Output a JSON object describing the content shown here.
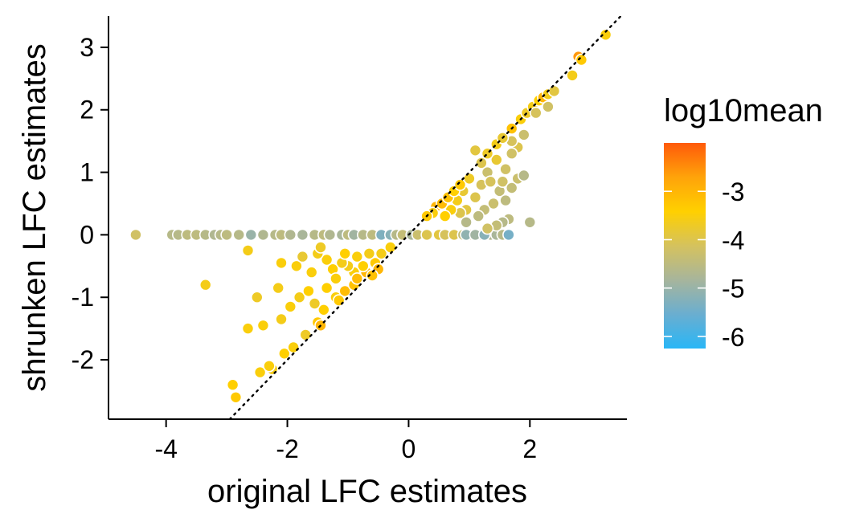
{
  "chart_data": {
    "type": "scatter",
    "title": "",
    "xlabel": "original LFC estimates",
    "ylabel": "shrunken LFC estimates",
    "xlim": [
      -4.95,
      3.6
    ],
    "ylim": [
      -2.95,
      3.5
    ],
    "xticks": [
      -4,
      -2,
      0,
      2
    ],
    "yticks": [
      -2,
      -1,
      0,
      1,
      2,
      3
    ],
    "reference_line": {
      "style": "dotted",
      "slope": 1,
      "intercept": 0
    },
    "grid": false,
    "legend": {
      "title": "log10mean",
      "placement": "right",
      "ticks": [
        -3,
        -4,
        -5,
        -6
      ],
      "range": [
        -6.25,
        -2.0
      ],
      "colors": [
        "#29b6f6",
        "#6aaed0",
        "#a7b59c",
        "#d5c25e",
        "#ffd000",
        "#ffa30a",
        "#ff5a0a"
      ]
    },
    "points": [
      {
        "x": -4.5,
        "y": 0.0,
        "c": -4.2
      },
      {
        "x": -3.9,
        "y": 0.0,
        "c": -4.6
      },
      {
        "x": -3.8,
        "y": 0.0,
        "c": -4.6
      },
      {
        "x": -3.65,
        "y": 0.0,
        "c": -4.5
      },
      {
        "x": -3.5,
        "y": 0.0,
        "c": -4.5
      },
      {
        "x": -3.35,
        "y": 0.0,
        "c": -4.6
      },
      {
        "x": -3.2,
        "y": 0.0,
        "c": -4.7
      },
      {
        "x": -3.1,
        "y": 0.0,
        "c": -4.6
      },
      {
        "x": -3.0,
        "y": 0.0,
        "c": -4.5
      },
      {
        "x": -2.8,
        "y": 0.0,
        "c": -4.6
      },
      {
        "x": -2.6,
        "y": 0.0,
        "c": -5.0
      },
      {
        "x": -2.4,
        "y": 0.0,
        "c": -4.7
      },
      {
        "x": -2.2,
        "y": 0.0,
        "c": -4.6
      },
      {
        "x": -2.1,
        "y": 0.0,
        "c": -4.5
      },
      {
        "x": -1.95,
        "y": 0.0,
        "c": -4.7
      },
      {
        "x": -1.75,
        "y": 0.0,
        "c": -4.8
      },
      {
        "x": -1.55,
        "y": 0.0,
        "c": -4.6
      },
      {
        "x": -1.4,
        "y": 0.0,
        "c": -4.5
      },
      {
        "x": -1.3,
        "y": 0.0,
        "c": -4.7
      },
      {
        "x": -1.1,
        "y": 0.0,
        "c": -4.8
      },
      {
        "x": -1.0,
        "y": 0.0,
        "c": -4.5
      },
      {
        "x": -0.9,
        "y": 0.0,
        "c": -4.9
      },
      {
        "x": -0.75,
        "y": 0.0,
        "c": -4.6
      },
      {
        "x": -0.6,
        "y": 0.0,
        "c": -4.5
      },
      {
        "x": -0.45,
        "y": 0.0,
        "c": -5.3
      },
      {
        "x": -0.3,
        "y": 0.0,
        "c": -5.2
      },
      {
        "x": -0.2,
        "y": 0.0,
        "c": -4.6
      },
      {
        "x": -0.1,
        "y": 0.0,
        "c": -4.4
      },
      {
        "x": 0.05,
        "y": 0.0,
        "c": -4.8
      },
      {
        "x": 0.15,
        "y": 0.0,
        "c": -4.3
      },
      {
        "x": 0.3,
        "y": 0.0,
        "c": -4.0
      },
      {
        "x": 0.5,
        "y": 0.0,
        "c": -3.9
      },
      {
        "x": 0.6,
        "y": 0.0,
        "c": -4.1
      },
      {
        "x": 0.75,
        "y": 0.0,
        "c": -4.0
      },
      {
        "x": 0.9,
        "y": 0.0,
        "c": -4.4
      },
      {
        "x": 1.0,
        "y": 0.0,
        "c": -4.2
      },
      {
        "x": 1.2,
        "y": 0.0,
        "c": -4.5
      },
      {
        "x": 1.35,
        "y": 0.0,
        "c": -4.7
      },
      {
        "x": 1.45,
        "y": 0.0,
        "c": -4.8
      },
      {
        "x": 1.55,
        "y": 0.0,
        "c": -4.6
      },
      {
        "x": 0.95,
        "y": 0.0,
        "c": -5.1
      },
      {
        "x": 1.1,
        "y": 0.0,
        "c": -4.9
      },
      {
        "x": 1.25,
        "y": 0.0,
        "c": -5.2
      },
      {
        "x": 1.65,
        "y": 0.0,
        "c": -5.4
      },
      {
        "x": 1.65,
        "y": 0.25,
        "c": -4.5
      },
      {
        "x": 1.55,
        "y": 0.2,
        "c": -4.6
      },
      {
        "x": 1.45,
        "y": 0.15,
        "c": -4.4
      },
      {
        "x": 1.3,
        "y": 0.1,
        "c": -4.2
      },
      {
        "x": 2.0,
        "y": 0.2,
        "c": -4.6
      },
      {
        "x": 1.6,
        "y": 1.05,
        "c": -4.2
      },
      {
        "x": 1.8,
        "y": 1.4,
        "c": -4.0
      },
      {
        "x": 1.9,
        "y": 1.6,
        "c": -4.3
      },
      {
        "x": 1.7,
        "y": 1.5,
        "c": -4.1
      },
      {
        "x": 1.45,
        "y": 1.2,
        "c": -3.8
      },
      {
        "x": 1.3,
        "y": 1.0,
        "c": -4.3
      },
      {
        "x": 1.2,
        "y": 0.8,
        "c": -4.1
      },
      {
        "x": 1.1,
        "y": 0.6,
        "c": -4.0
      },
      {
        "x": 0.95,
        "y": 0.4,
        "c": -3.9
      },
      {
        "x": 0.85,
        "y": 0.35,
        "c": -4.0
      },
      {
        "x": 1.5,
        "y": 0.7,
        "c": -4.4
      },
      {
        "x": 1.4,
        "y": 0.5,
        "c": -4.3
      },
      {
        "x": 1.6,
        "y": 0.55,
        "c": -4.5
      },
      {
        "x": 1.55,
        "y": 0.85,
        "c": -4.2
      },
      {
        "x": 1.35,
        "y": 0.85,
        "c": -4.1
      },
      {
        "x": 1.2,
        "y": 1.15,
        "c": -4.0
      },
      {
        "x": 1.0,
        "y": 0.9,
        "c": -3.7
      },
      {
        "x": 0.9,
        "y": 0.7,
        "c": -3.8
      },
      {
        "x": 0.8,
        "y": 0.55,
        "c": -3.6
      },
      {
        "x": 0.7,
        "y": 0.4,
        "c": -3.5
      },
      {
        "x": 0.6,
        "y": 0.3,
        "c": -3.4
      },
      {
        "x": 0.45,
        "y": 0.45,
        "c": -3.0
      },
      {
        "x": 0.55,
        "y": 0.5,
        "c": -3.1
      },
      {
        "x": 0.65,
        "y": 0.6,
        "c": -3.2
      },
      {
        "x": 0.75,
        "y": 0.7,
        "c": -3.4
      },
      {
        "x": 0.85,
        "y": 0.8,
        "c": -3.3
      },
      {
        "x": 0.4,
        "y": 0.35,
        "c": -3.5
      },
      {
        "x": 0.3,
        "y": 0.3,
        "c": -3.3
      },
      {
        "x": 1.1,
        "y": 1.35,
        "c": -3.9
      },
      {
        "x": 1.3,
        "y": 1.3,
        "c": -3.7
      },
      {
        "x": 1.45,
        "y": 1.45,
        "c": -3.6
      },
      {
        "x": 1.55,
        "y": 1.55,
        "c": -3.8
      },
      {
        "x": 1.7,
        "y": 1.7,
        "c": -3.2
      },
      {
        "x": 1.85,
        "y": 1.85,
        "c": -3.5
      },
      {
        "x": 1.95,
        "y": 1.95,
        "c": -3.7
      },
      {
        "x": 2.05,
        "y": 2.05,
        "c": -3.6
      },
      {
        "x": 2.15,
        "y": 2.15,
        "c": -3.4
      },
      {
        "x": 2.22,
        "y": 2.2,
        "c": -3.0
      },
      {
        "x": 2.3,
        "y": 2.25,
        "c": -3.6
      },
      {
        "x": 2.4,
        "y": 2.3,
        "c": -3.9
      },
      {
        "x": 2.3,
        "y": 2.05,
        "c": -4.2
      },
      {
        "x": 2.1,
        "y": 1.95,
        "c": -4.1
      },
      {
        "x": 1.7,
        "y": 1.3,
        "c": -4.2
      },
      {
        "x": 1.8,
        "y": 0.9,
        "c": -4.3
      },
      {
        "x": 1.7,
        "y": 0.75,
        "c": -4.4
      },
      {
        "x": 1.9,
        "y": 0.95,
        "c": -4.6
      },
      {
        "x": 1.25,
        "y": 0.4,
        "c": -4.4
      },
      {
        "x": 1.15,
        "y": 0.3,
        "c": -4.5
      },
      {
        "x": 0.95,
        "y": 0.2,
        "c": -4.6
      },
      {
        "x": 2.7,
        "y": 2.55,
        "c": -3.6
      },
      {
        "x": 2.8,
        "y": 2.85,
        "c": -2.6
      },
      {
        "x": 2.85,
        "y": 2.8,
        "c": -3.3
      },
      {
        "x": 3.25,
        "y": 3.2,
        "c": -3.5
      },
      {
        "x": -2.85,
        "y": -2.6,
        "c": -3.3
      },
      {
        "x": -2.9,
        "y": -2.4,
        "c": -3.4
      },
      {
        "x": -2.45,
        "y": -2.2,
        "c": -3.5
      },
      {
        "x": -2.25,
        "y": -2.15,
        "c": -3.6
      },
      {
        "x": -2.05,
        "y": -1.9,
        "c": -3.4
      },
      {
        "x": -1.9,
        "y": -1.8,
        "c": -3.5
      },
      {
        "x": -1.7,
        "y": -1.6,
        "c": -3.7
      },
      {
        "x": -1.5,
        "y": -1.4,
        "c": -3.3
      },
      {
        "x": -1.4,
        "y": -1.2,
        "c": -3.4
      },
      {
        "x": -1.2,
        "y": -1.0,
        "c": -3.5
      },
      {
        "x": -1.05,
        "y": -0.9,
        "c": -3.1
      },
      {
        "x": -0.9,
        "y": -0.8,
        "c": -3.2
      },
      {
        "x": -0.7,
        "y": -0.6,
        "c": -3.0
      },
      {
        "x": -0.55,
        "y": -0.45,
        "c": -3.3
      },
      {
        "x": -0.75,
        "y": -0.5,
        "c": -3.4
      },
      {
        "x": -0.9,
        "y": -0.6,
        "c": -3.5
      },
      {
        "x": -1.0,
        "y": -0.5,
        "c": -3.6
      },
      {
        "x": -1.1,
        "y": -0.45,
        "c": -3.6
      },
      {
        "x": -1.25,
        "y": -0.55,
        "c": -3.4
      },
      {
        "x": -1.35,
        "y": -0.4,
        "c": -3.5
      },
      {
        "x": -1.5,
        "y": -0.3,
        "c": -3.6
      },
      {
        "x": -1.6,
        "y": -0.6,
        "c": -3.5
      },
      {
        "x": -1.85,
        "y": -0.5,
        "c": -3.5
      },
      {
        "x": -1.75,
        "y": -0.35,
        "c": -3.8
      },
      {
        "x": -2.1,
        "y": -0.45,
        "c": -3.5
      },
      {
        "x": -2.15,
        "y": -0.85,
        "c": -3.6
      },
      {
        "x": -2.5,
        "y": -1.0,
        "c": -3.7
      },
      {
        "x": -2.65,
        "y": -1.5,
        "c": -3.5
      },
      {
        "x": -2.4,
        "y": -1.45,
        "c": -3.5
      },
      {
        "x": -2.1,
        "y": -1.35,
        "c": -3.6
      },
      {
        "x": -1.95,
        "y": -1.15,
        "c": -3.5
      },
      {
        "x": -1.8,
        "y": -1.0,
        "c": -3.6
      },
      {
        "x": -1.65,
        "y": -0.9,
        "c": -3.4
      },
      {
        "x": -1.55,
        "y": -1.1,
        "c": -3.7
      },
      {
        "x": -1.35,
        "y": -0.85,
        "c": -3.4
      },
      {
        "x": -1.2,
        "y": -0.7,
        "c": -3.5
      },
      {
        "x": -1.05,
        "y": -0.3,
        "c": -3.4
      },
      {
        "x": -0.85,
        "y": -0.35,
        "c": -3.5
      },
      {
        "x": -0.65,
        "y": -0.3,
        "c": -3.6
      },
      {
        "x": -0.45,
        "y": -0.3,
        "c": -3.6
      },
      {
        "x": -0.3,
        "y": -0.2,
        "c": -3.5
      },
      {
        "x": -1.45,
        "y": -0.2,
        "c": -3.7
      },
      {
        "x": -2.65,
        "y": -0.25,
        "c": -3.6
      },
      {
        "x": -3.35,
        "y": -0.8,
        "c": -3.6
      },
      {
        "x": -2.3,
        "y": -2.1,
        "c": -3.5
      },
      {
        "x": -1.15,
        "y": -1.05,
        "c": -3.3
      },
      {
        "x": -0.85,
        "y": -0.7,
        "c": -3.1
      },
      {
        "x": -0.5,
        "y": -0.55,
        "c": -3.0
      },
      {
        "x": -0.6,
        "y": -0.65,
        "c": -3.2
      },
      {
        "x": -1.45,
        "y": -1.45,
        "c": -3.0
      }
    ]
  }
}
